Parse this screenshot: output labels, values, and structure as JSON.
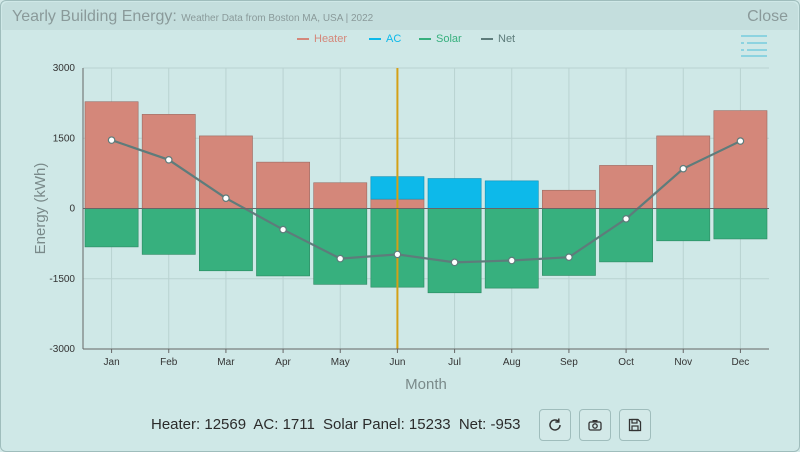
{
  "window": {
    "title": "Yearly Building Energy:",
    "subtitle": "Weather Data from Boston MA, USA | 2022",
    "close_label": "Close"
  },
  "toolbar_icons": {
    "menu": "hamburger-menu-icon",
    "refresh": "refresh-icon",
    "camera": "camera-icon",
    "save": "save-icon"
  },
  "stats": {
    "heater": "Heater: 12569",
    "ac": "AC: 1711",
    "solar": "Solar Panel: 15233",
    "net": "Net: -953"
  },
  "chart_data": {
    "type": "bar",
    "categories": [
      "Jan",
      "Feb",
      "Mar",
      "Apr",
      "May",
      "Jun",
      "Jul",
      "Aug",
      "Sep",
      "Oct",
      "Nov",
      "Dec"
    ],
    "series": [
      {
        "name": "Heater",
        "color": "#d4877a",
        "values": [
          2280,
          2010,
          1550,
          990,
          550,
          200,
          0,
          0,
          390,
          920,
          1550,
          2090
        ]
      },
      {
        "name": "AC",
        "color": "#0db9ea",
        "values": [
          0,
          0,
          0,
          0,
          0,
          480,
          640,
          590,
          0,
          0,
          0,
          0
        ]
      },
      {
        "name": "Solar",
        "color": "#37b07e",
        "values": [
          -820,
          -980,
          -1330,
          -1440,
          -1620,
          -1680,
          -1800,
          -1700,
          -1430,
          -1140,
          -690,
          -650
        ]
      },
      {
        "name": "Net",
        "color": "#5e7c7b",
        "values": [
          1460,
          1040,
          220,
          -450,
          -1070,
          -980,
          -1150,
          -1110,
          -1040,
          -220,
          850,
          1440
        ]
      }
    ],
    "ylim": [
      -3000,
      3000
    ],
    "yticks": [
      3000,
      1500,
      0,
      -1500,
      -3000
    ],
    "ytick_labels": [
      "3000",
      "1500",
      "0",
      "-1500",
      "-3000"
    ],
    "xlabel": "Month",
    "ylabel": "Energy (kWh)",
    "highlight_category": "Jun",
    "highlight_color": "#d4a017",
    "legend_position": "top-center",
    "grid": true
  }
}
